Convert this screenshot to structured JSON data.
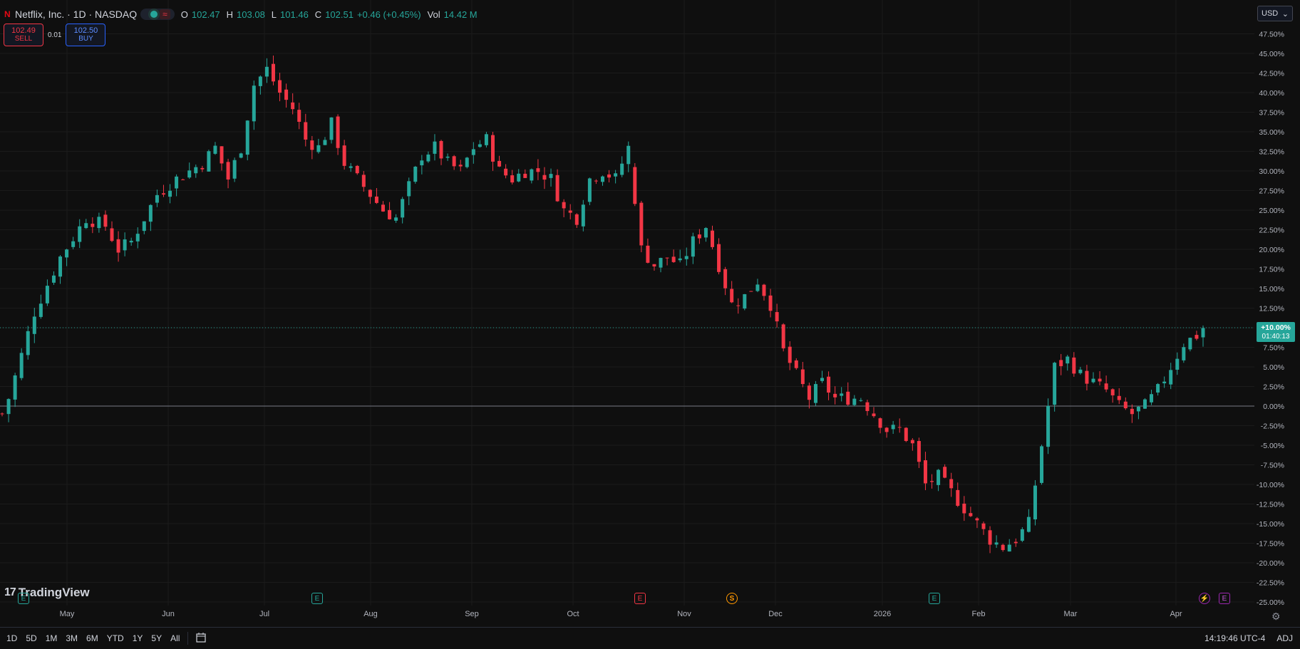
{
  "legend": {
    "logo_letter": "N",
    "symbol": "Netflix, Inc. · 1D · NASDAQ",
    "open_label": "O",
    "open": "102.47",
    "high_label": "H",
    "high": "103.08",
    "low_label": "L",
    "low": "101.46",
    "close_label": "C",
    "close": "102.51",
    "change": "+0.46 (+0.45%)",
    "vol_label": "Vol",
    "volume": "14.42 M",
    "status_icon": "market-open-dot",
    "wave_icon": "≈"
  },
  "trade": {
    "sell_price": "102.49",
    "sell_label": "SELL",
    "spread": "0.01",
    "buy_price": "102.50",
    "buy_label": "BUY"
  },
  "currency": {
    "value": "USD",
    "caret": "⌄"
  },
  "price_marker": {
    "value": "+10.00%",
    "countdown": "01:40:13"
  },
  "branding": {
    "name": "TradingView",
    "mark": "17"
  },
  "time_axis": {
    "labels": [
      "May",
      "Jun",
      "Jul",
      "Aug",
      "Sep",
      "Oct",
      "Nov",
      "Dec",
      "2026",
      "Feb",
      "Mar",
      "Apr"
    ]
  },
  "events": {
    "earnings": "E",
    "dividend": "S",
    "split": "⚡"
  },
  "bottom_bar": {
    "ranges": [
      "1D",
      "5D",
      "1M",
      "3M",
      "6M",
      "YTD",
      "1Y",
      "5Y",
      "All"
    ],
    "time": "14:19:46 UTC-4",
    "adj": "ADJ",
    "calendar_icon": "calendar-goto-icon"
  },
  "colors": {
    "up": "#26a69a",
    "down": "#f23645",
    "background": "#0f0f0f",
    "grid": "#1b1b1b",
    "axis_text": "#b2b5be",
    "zero_line": "#787b86"
  },
  "chart_data": {
    "type": "candlestick",
    "y_axis": {
      "unit": "%",
      "ticks": [
        "47.50%",
        "45.00%",
        "42.50%",
        "40.00%",
        "37.50%",
        "35.00%",
        "32.50%",
        "30.00%",
        "27.50%",
        "25.00%",
        "22.50%",
        "20.00%",
        "17.50%",
        "15.00%",
        "12.50%",
        "10.00%",
        "7.50%",
        "5.00%",
        "2.50%",
        "0.00%",
        "-2.50%",
        "-5.00%",
        "-7.50%",
        "-10.00%",
        "-12.50%",
        "-15.00%",
        "-17.50%",
        "-20.00%",
        "-22.50%",
        "-25.00%"
      ],
      "range": [
        -25,
        47.5
      ]
    },
    "x_axis": {
      "labels": [
        "May",
        "Jun",
        "Jul",
        "Aug",
        "Sep",
        "Oct",
        "Nov",
        "Dec",
        "2026",
        "Feb",
        "Mar",
        "Apr"
      ]
    },
    "current_value": 10.0,
    "path_pct": [
      [
        0,
        -1
      ],
      [
        1,
        1
      ],
      [
        5,
        12
      ],
      [
        9,
        19
      ],
      [
        13,
        24
      ],
      [
        16,
        23
      ],
      [
        18,
        20
      ],
      [
        20,
        21
      ],
      [
        24,
        27
      ],
      [
        27,
        29
      ],
      [
        31,
        31
      ],
      [
        33,
        33
      ],
      [
        35,
        29
      ],
      [
        37,
        33
      ],
      [
        39,
        41
      ],
      [
        41,
        43
      ],
      [
        43,
        40
      ],
      [
        45,
        38
      ],
      [
        47,
        34
      ],
      [
        49,
        33
      ],
      [
        51,
        36
      ],
      [
        53,
        31
      ],
      [
        55,
        29
      ],
      [
        57,
        27
      ],
      [
        59,
        25
      ],
      [
        61,
        24
      ],
      [
        63,
        28
      ],
      [
        65,
        32
      ],
      [
        67,
        33
      ],
      [
        69,
        31
      ],
      [
        71,
        30
      ],
      [
        73,
        33
      ],
      [
        75,
        34
      ],
      [
        77,
        30
      ],
      [
        79,
        29
      ],
      [
        81,
        30
      ],
      [
        83,
        30
      ],
      [
        85,
        29
      ],
      [
        87,
        25
      ],
      [
        89,
        24
      ],
      [
        91,
        29
      ],
      [
        93,
        30
      ],
      [
        95,
        29
      ],
      [
        97,
        33
      ],
      [
        99,
        20
      ],
      [
        101,
        18
      ],
      [
        103,
        19
      ],
      [
        105,
        18
      ],
      [
        107,
        21
      ],
      [
        109,
        23
      ],
      [
        111,
        18
      ],
      [
        113,
        13
      ],
      [
        115,
        14
      ],
      [
        117,
        16
      ],
      [
        119,
        13
      ],
      [
        121,
        7
      ],
      [
        123,
        4
      ],
      [
        125,
        1
      ],
      [
        127,
        3
      ],
      [
        129,
        1
      ],
      [
        131,
        1
      ],
      [
        133,
        1
      ],
      [
        135,
        -1
      ],
      [
        137,
        -3
      ],
      [
        139,
        -3
      ],
      [
        141,
        -5
      ],
      [
        143,
        -10
      ],
      [
        145,
        -9
      ],
      [
        147,
        -11
      ],
      [
        149,
        -13
      ],
      [
        151,
        -15
      ],
      [
        153,
        -17
      ],
      [
        155,
        -18
      ],
      [
        157,
        -17
      ],
      [
        159,
        -15
      ],
      [
        161,
        -5
      ],
      [
        163,
        5
      ],
      [
        165,
        6
      ],
      [
        167,
        4
      ],
      [
        169,
        3
      ],
      [
        171,
        2
      ],
      [
        173,
        0
      ],
      [
        175,
        -1
      ],
      [
        177,
        0
      ],
      [
        179,
        2
      ],
      [
        181,
        5
      ],
      [
        183,
        8
      ],
      [
        185,
        9
      ],
      [
        186,
        10
      ]
    ]
  }
}
